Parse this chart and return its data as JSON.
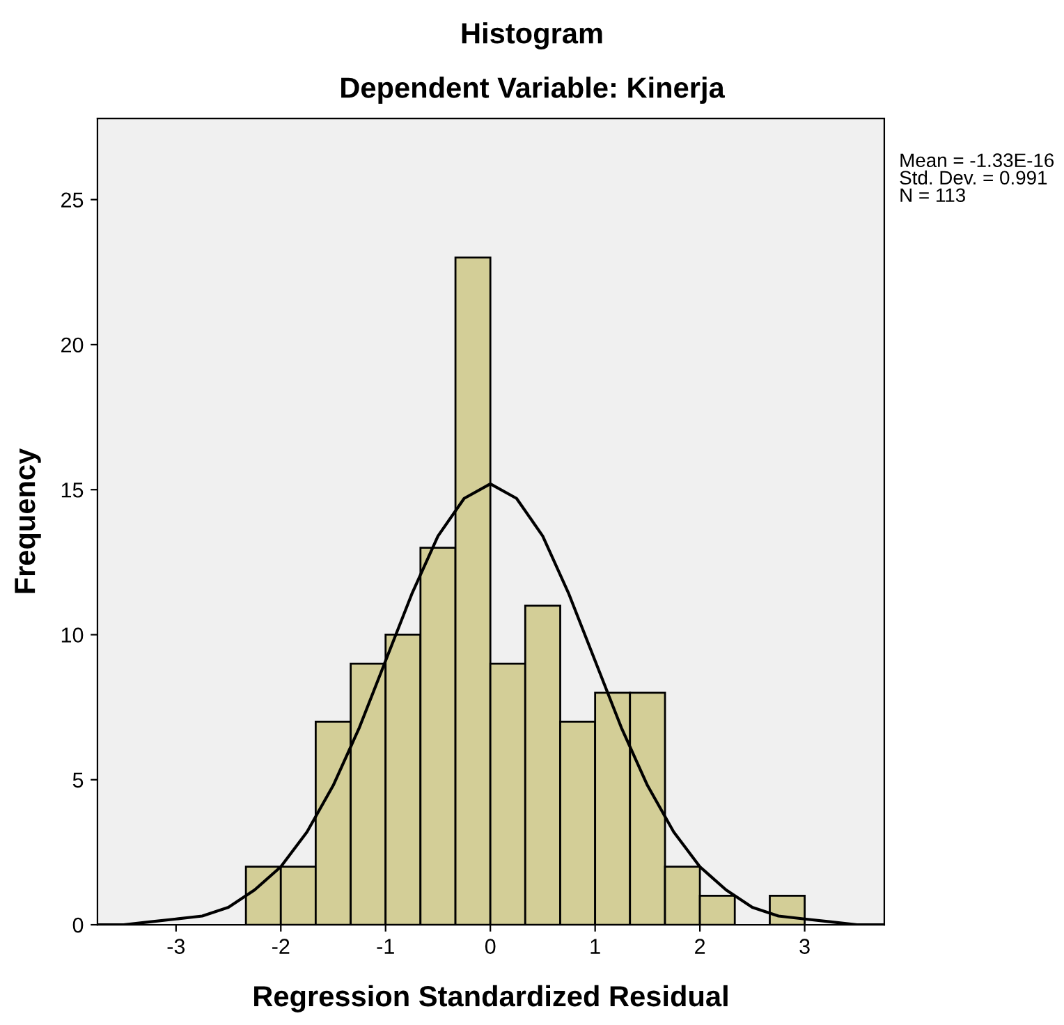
{
  "chart_data": {
    "type": "histogram",
    "title": "Histogram",
    "subtitle": "Dependent Variable: Kinerja",
    "xlabel": "Regression Standardized Residual",
    "ylabel": "Frequency",
    "bins": [
      -2.333,
      -2,
      -1.667,
      -1.333,
      -1,
      -0.667,
      -0.333,
      0,
      0.333,
      0.667,
      1,
      1.333,
      1.667,
      2,
      2.333,
      2.667,
      3
    ],
    "values": [
      2,
      2,
      7,
      9,
      10,
      13,
      23,
      9,
      11,
      7,
      8,
      8,
      2,
      1,
      0,
      1
    ],
    "color": "#d3ce97",
    "series": [
      {
        "type": "line",
        "color": "#000000",
        "x": [
          -3.75,
          -3.5,
          -3.25,
          -3,
          -2.75,
          -2.5,
          -2.25,
          -2,
          -1.75,
          -1.5,
          -1.25,
          -1,
          -0.75,
          -0.5,
          -0.25,
          0,
          0.25,
          0.5,
          0.75,
          1,
          1.25,
          1.5,
          1.75,
          2,
          2.25,
          2.5,
          2.75,
          3,
          3.25,
          3.5,
          3.75
        ],
        "values": [
          0.0,
          0.0,
          0.1,
          0.2,
          0.3,
          0.6,
          1.2,
          2.0,
          3.2,
          4.8,
          6.8,
          9.1,
          11.4,
          13.4,
          14.7,
          15.2,
          14.7,
          13.4,
          11.4,
          9.1,
          6.8,
          4.8,
          3.2,
          2.0,
          1.2,
          0.6,
          0.3,
          0.2,
          0.1,
          0.0,
          0.0
        ]
      }
    ],
    "xlim": [
      -3.75,
      3.76
    ],
    "ylim": [
      0,
      27.8
    ],
    "xticks": [
      -3,
      -2,
      -1,
      0,
      1,
      2,
      3
    ],
    "yticks": [
      0,
      5,
      10,
      15,
      20,
      25
    ],
    "grid": false,
    "annotations": [
      "Mean = -1.33E-16",
      "Std. Dev. = 0.991",
      "N = 113"
    ]
  }
}
